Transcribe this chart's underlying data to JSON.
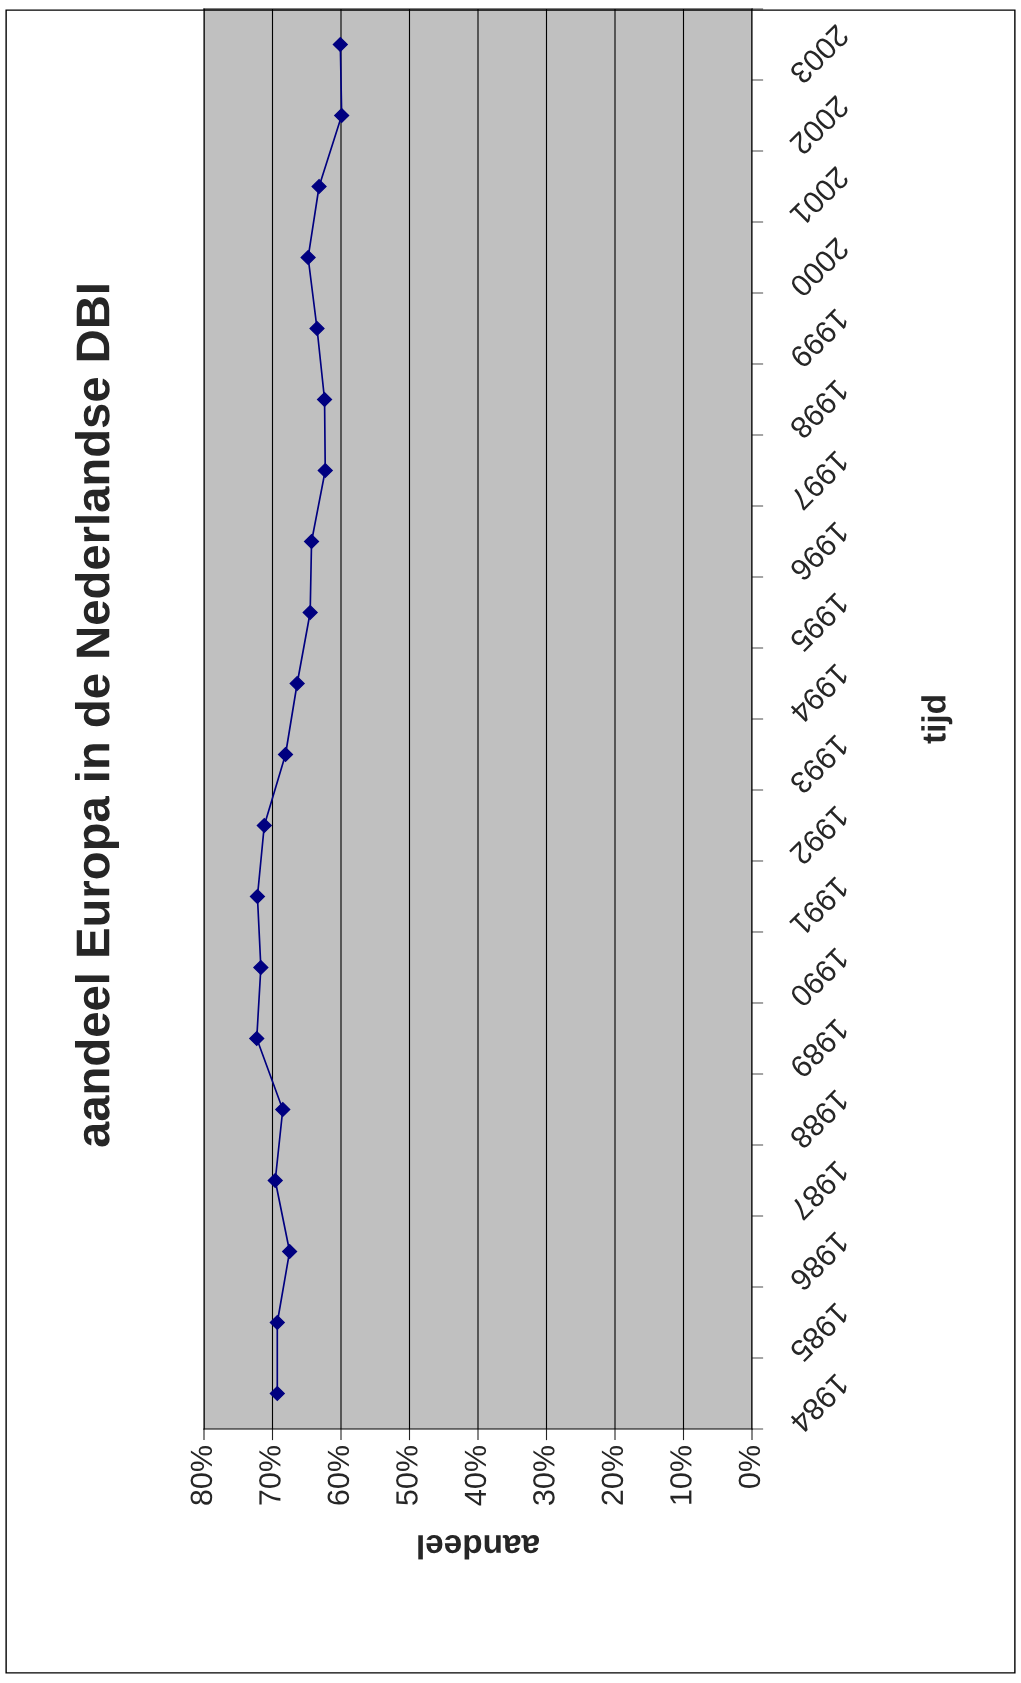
{
  "chart_data": {
    "type": "line",
    "title": "aandeel Europa in de Nederlandse DBI",
    "xlabel": "aandeel",
    "ylabel": "tijd",
    "orientation": "horizontal",
    "categories": [
      "2003",
      "2002",
      "2001",
      "2000",
      "1999",
      "1998",
      "1997",
      "1996",
      "1995",
      "1994",
      "1993",
      "1992",
      "1991",
      "1990",
      "1989",
      "1988",
      "1987",
      "1986",
      "1985",
      "1984"
    ],
    "series": [
      {
        "color": "#000080",
        "values": [
          60.1,
          59.9,
          63.2,
          64.8,
          63.5,
          62.4,
          62.3,
          64.3,
          64.5,
          66.4,
          68.1,
          71.2,
          72.2,
          71.7,
          72.3,
          68.5,
          69.6,
          67.5,
          69.3,
          69.3
        ]
      }
    ],
    "xlim": [
      80,
      0
    ],
    "xticks": [
      {
        "value": 80,
        "label": "80%"
      },
      {
        "value": 70,
        "label": "70%"
      },
      {
        "value": 60,
        "label": "60%"
      },
      {
        "value": 50,
        "label": "50%"
      },
      {
        "value": 40,
        "label": "40%"
      },
      {
        "value": 30,
        "label": "30%"
      },
      {
        "value": 20,
        "label": "20%"
      },
      {
        "value": 10,
        "label": "10%"
      },
      {
        "value": 0,
        "label": "0%"
      }
    ],
    "grid": "x",
    "marker": "diamond",
    "line_style": "solid"
  }
}
